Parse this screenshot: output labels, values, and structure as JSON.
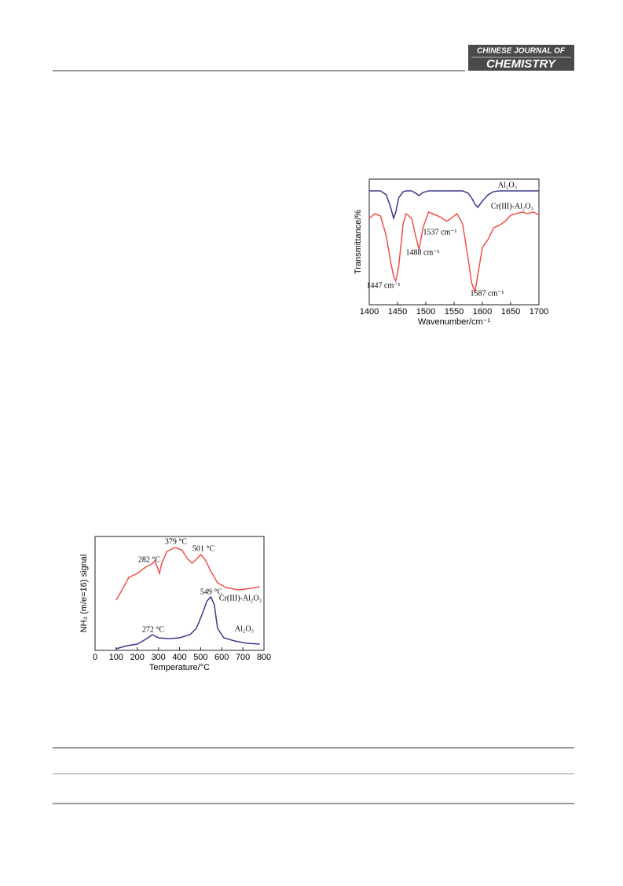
{
  "header": {
    "journal_line1": "CHINESE JOURNAL OF",
    "journal_line2": "CHEMISTRY"
  },
  "chart_data": [
    {
      "type": "line",
      "xlabel": "Wavenumber/cm⁻¹",
      "ylabel": "Transmittance/%",
      "xlim": [
        1400,
        1700
      ],
      "xticks": [
        1400,
        1450,
        1500,
        1550,
        1600,
        1650,
        1700
      ],
      "ylim": [
        0,
        100
      ],
      "x": [
        1400,
        1410,
        1420,
        1430,
        1437,
        1443,
        1447,
        1452,
        1460,
        1465,
        1475,
        1482,
        1488,
        1495,
        1505,
        1515,
        1525,
        1537,
        1545,
        1555,
        1565,
        1575,
        1581,
        1587,
        1592,
        1600,
        1610,
        1620,
        1630,
        1640,
        1650,
        1660,
        1670,
        1680,
        1690,
        1700
      ],
      "series": [
        {
          "name": "Al₂O₃",
          "color": "#3a3a8c",
          "values": [
            90.6,
            90.6,
            90.6,
            87.5,
            78.8,
            68.8,
            73.8,
            85.0,
            90.0,
            90.6,
            90.6,
            88.8,
            86.9,
            89.4,
            90.6,
            90.6,
            90.6,
            90.6,
            90.6,
            90.6,
            90.6,
            88.8,
            85.0,
            80.0,
            77.5,
            82.5,
            87.5,
            90.0,
            90.6,
            90.6,
            90.6,
            90.6,
            90.6,
            90.6,
            90.6,
            90.6
          ]
        },
        {
          "name": "Cr(III)-Al₂O₃",
          "color": "#f0504a",
          "values": [
            68.8,
            72.5,
            70.6,
            55.0,
            36.3,
            22.5,
            18.8,
            30.0,
            64.4,
            72.5,
            68.8,
            55.0,
            43.8,
            61.3,
            73.8,
            71.9,
            70.0,
            66.3,
            68.8,
            72.5,
            64.4,
            36.3,
            17.5,
            10.0,
            23.8,
            45.6,
            51.9,
            61.3,
            63.1,
            66.3,
            71.3,
            72.5,
            73.8,
            72.5,
            73.8,
            71.3
          ]
        }
      ],
      "annotations": [
        "1447 cm⁻¹",
        "1488 cm⁻¹",
        "1537 cm⁻¹",
        "1587 cm⁻¹"
      ]
    },
    {
      "type": "line",
      "xlabel": "Temperature/°C",
      "ylabel": "NH₃ (m/e=16) signal",
      "xlim": [
        0,
        800
      ],
      "xticks": [
        0,
        100,
        200,
        300,
        400,
        500,
        600,
        700,
        800
      ],
      "ylim": [
        0,
        100
      ],
      "series": [
        {
          "name": "Cr(III)-Al₂O₃",
          "color": "#f0504a",
          "x": [
            100,
            130,
            160,
            200,
            240,
            270,
            282,
            295,
            305,
            315,
            340,
            379,
            410,
            440,
            460,
            480,
            501,
            520,
            550,
            580,
            620,
            680,
            740,
            780
          ],
          "values": [
            44.1,
            53.8,
            64.1,
            67.6,
            73.1,
            75.9,
            78.6,
            73.1,
            67.6,
            75.9,
            86.9,
            90.3,
            88.3,
            80.0,
            76.6,
            80.0,
            84.1,
            80.0,
            69.0,
            59.3,
            55.2,
            53.1,
            54.5,
            55.9
          ]
        },
        {
          "name": "Al₂O₃",
          "color": "#3a3a8c",
          "x": [
            100,
            150,
            200,
            240,
            272,
            300,
            350,
            400,
            450,
            480,
            510,
            530,
            549,
            565,
            580,
            610,
            660,
            720,
            780
          ],
          "values": [
            1.4,
            4.1,
            5.5,
            9.7,
            13.8,
            11.0,
            10.3,
            11.0,
            13.8,
            19.3,
            33.1,
            43.4,
            46.9,
            40.0,
            19.3,
            11.0,
            8.3,
            6.2,
            5.5
          ]
        }
      ],
      "annotations": [
        "282 °C",
        "379 °C",
        "501 °C",
        "272 °C",
        "549 °C"
      ]
    }
  ]
}
